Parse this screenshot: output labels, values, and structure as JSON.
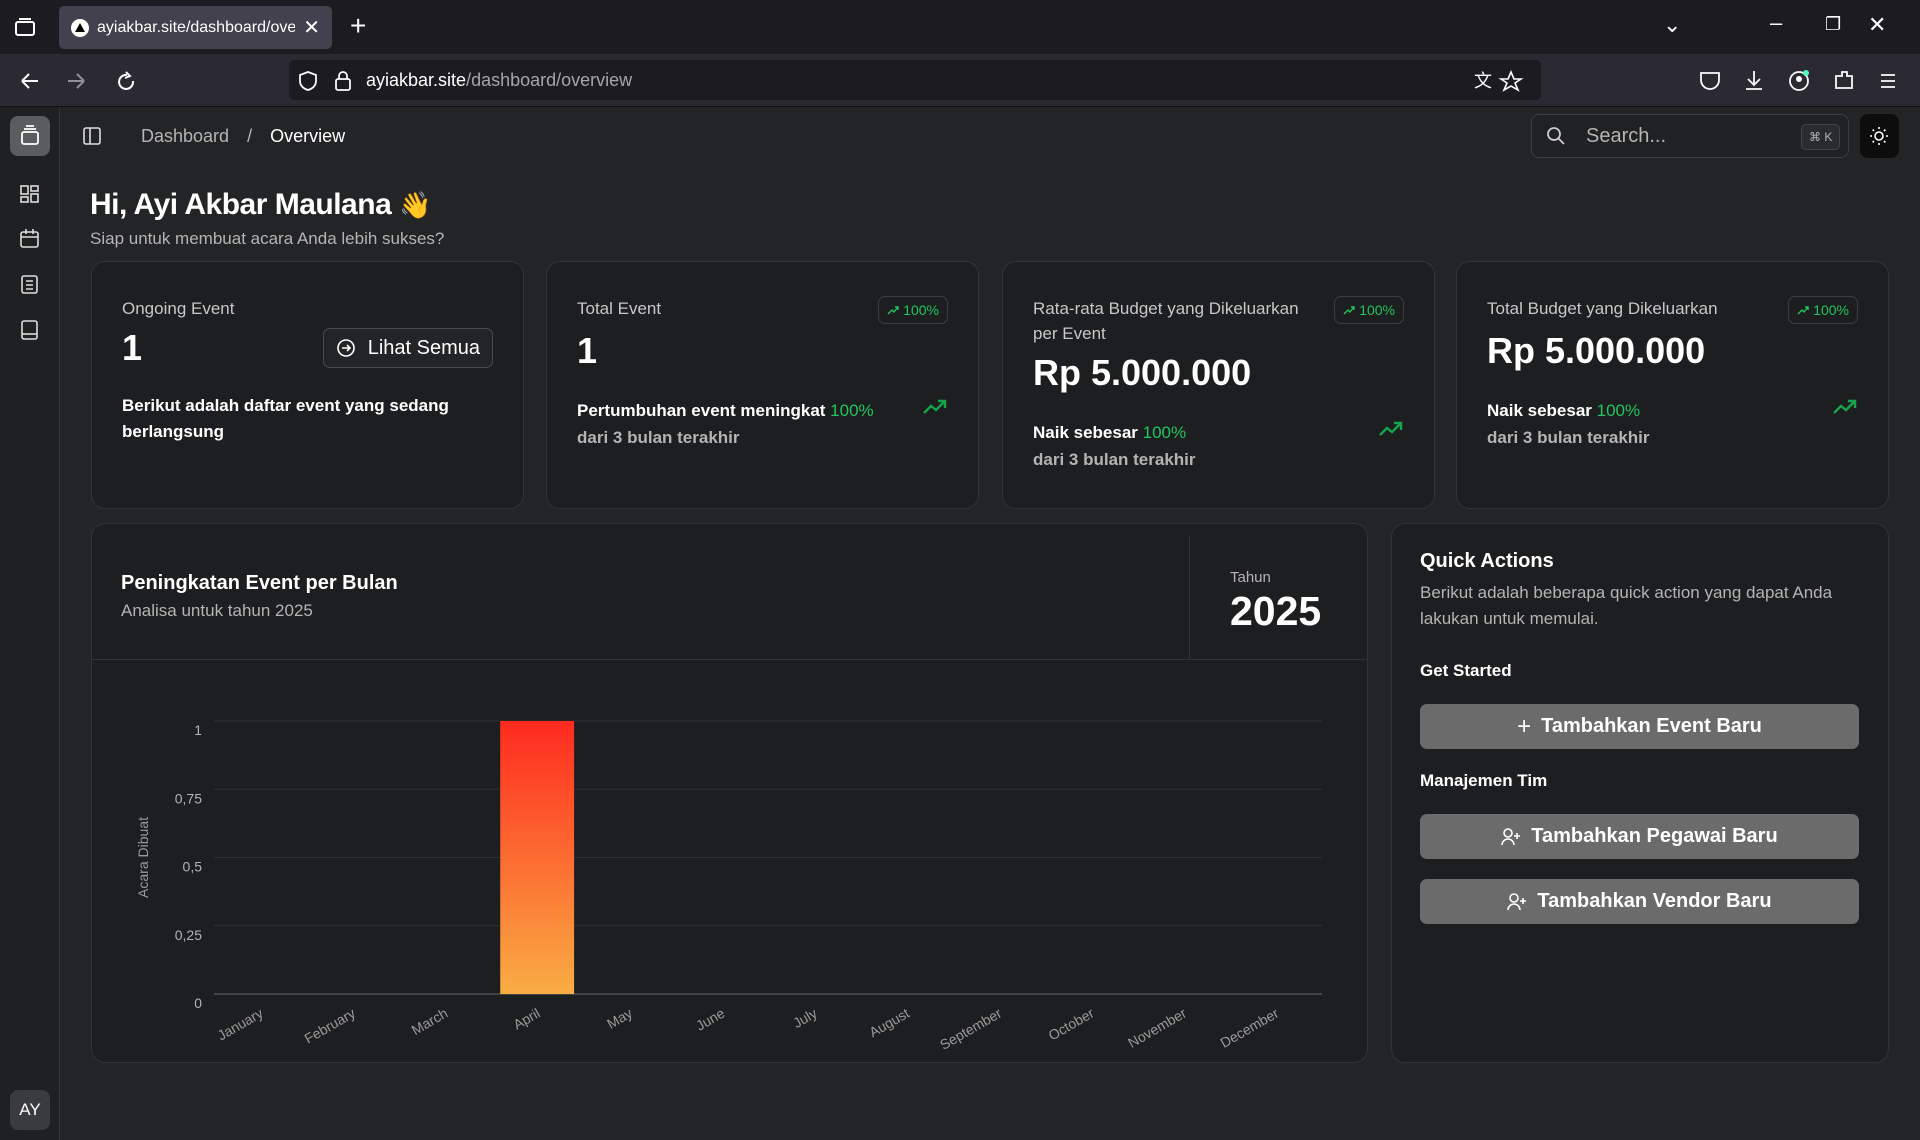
{
  "browser": {
    "tab_title": "ayiakbar.site/dashboard/overview",
    "url_host": "ayiakbar.site",
    "url_path": "/dashboard/overview"
  },
  "sidebar": {
    "avatar": "AY"
  },
  "header": {
    "breadcrumb": [
      "Dashboard",
      "Overview"
    ],
    "search_placeholder": "Search...",
    "shortcut": "⌘ K"
  },
  "greeting": {
    "title": "Hi, Ayi Akbar Maulana",
    "emoji": "👋",
    "subtitle": "Siap untuk membuat acara Anda lebih sukses?"
  },
  "cards": [
    {
      "label": "Ongoing Event",
      "value": 1,
      "button": "Lihat Semua",
      "description": "Berikut adalah daftar event yang sedang berlangsung"
    },
    {
      "label": "Total Event",
      "badge": "100%",
      "value": 1,
      "note": "Pertumbuhan event meningkat",
      "note_highlight": "100%",
      "note_sub": "dari 3 bulan terakhir"
    },
    {
      "label": "Rata-rata Budget yang Dikeluarkan per Event",
      "badge": "100%",
      "value": "Rp 5.000.000",
      "note": "Naik sebesar",
      "note_highlight": "100%",
      "note_sub": "dari 3 bulan terakhir"
    },
    {
      "label": "Total Budget yang Dikeluarkan",
      "badge": "100%",
      "value": "Rp 5.000.000",
      "note": "Naik sebesar",
      "note_highlight": "100%",
      "note_sub": "dari 3 bulan terakhir"
    }
  ],
  "chart_data": {
    "type": "bar",
    "title": "Peningkatan Event per Bulan",
    "subtitle": "Analisa untuk tahun 2025",
    "year_label": "Tahun",
    "year": "2025",
    "y_label": "Acara Dibuat",
    "categories": [
      "January",
      "February",
      "March",
      "April",
      "May",
      "June",
      "July",
      "August",
      "September",
      "October",
      "November",
      "December"
    ],
    "values": [
      0,
      0,
      0,
      1,
      0,
      0,
      0,
      0,
      0,
      0,
      0,
      0
    ],
    "colors": [
      "#ff2a1f",
      "#f9ad44"
    ],
    "ylim": [
      0,
      1
    ],
    "yticks": [
      0,
      {
        "value": 0.25,
        "label": "0,25"
      },
      {
        "value": 0.5,
        "label": "0,5"
      },
      {
        "value": 0.75,
        "label": "0,75"
      },
      1
    ],
    "grid": true
  },
  "quick_actions": {
    "title": "Quick Actions",
    "description": "Berikut adalah beberapa quick action yang dapat Anda lakukan untuk memulai.",
    "groups": [
      {
        "title": "Get Started",
        "buttons": [
          "Tambahkan Event Baru"
        ]
      },
      {
        "title": "Manajemen Tim",
        "buttons": [
          "Tambahkan Pegawai Baru",
          "Tambahkan Vendor Baru"
        ]
      }
    ]
  }
}
